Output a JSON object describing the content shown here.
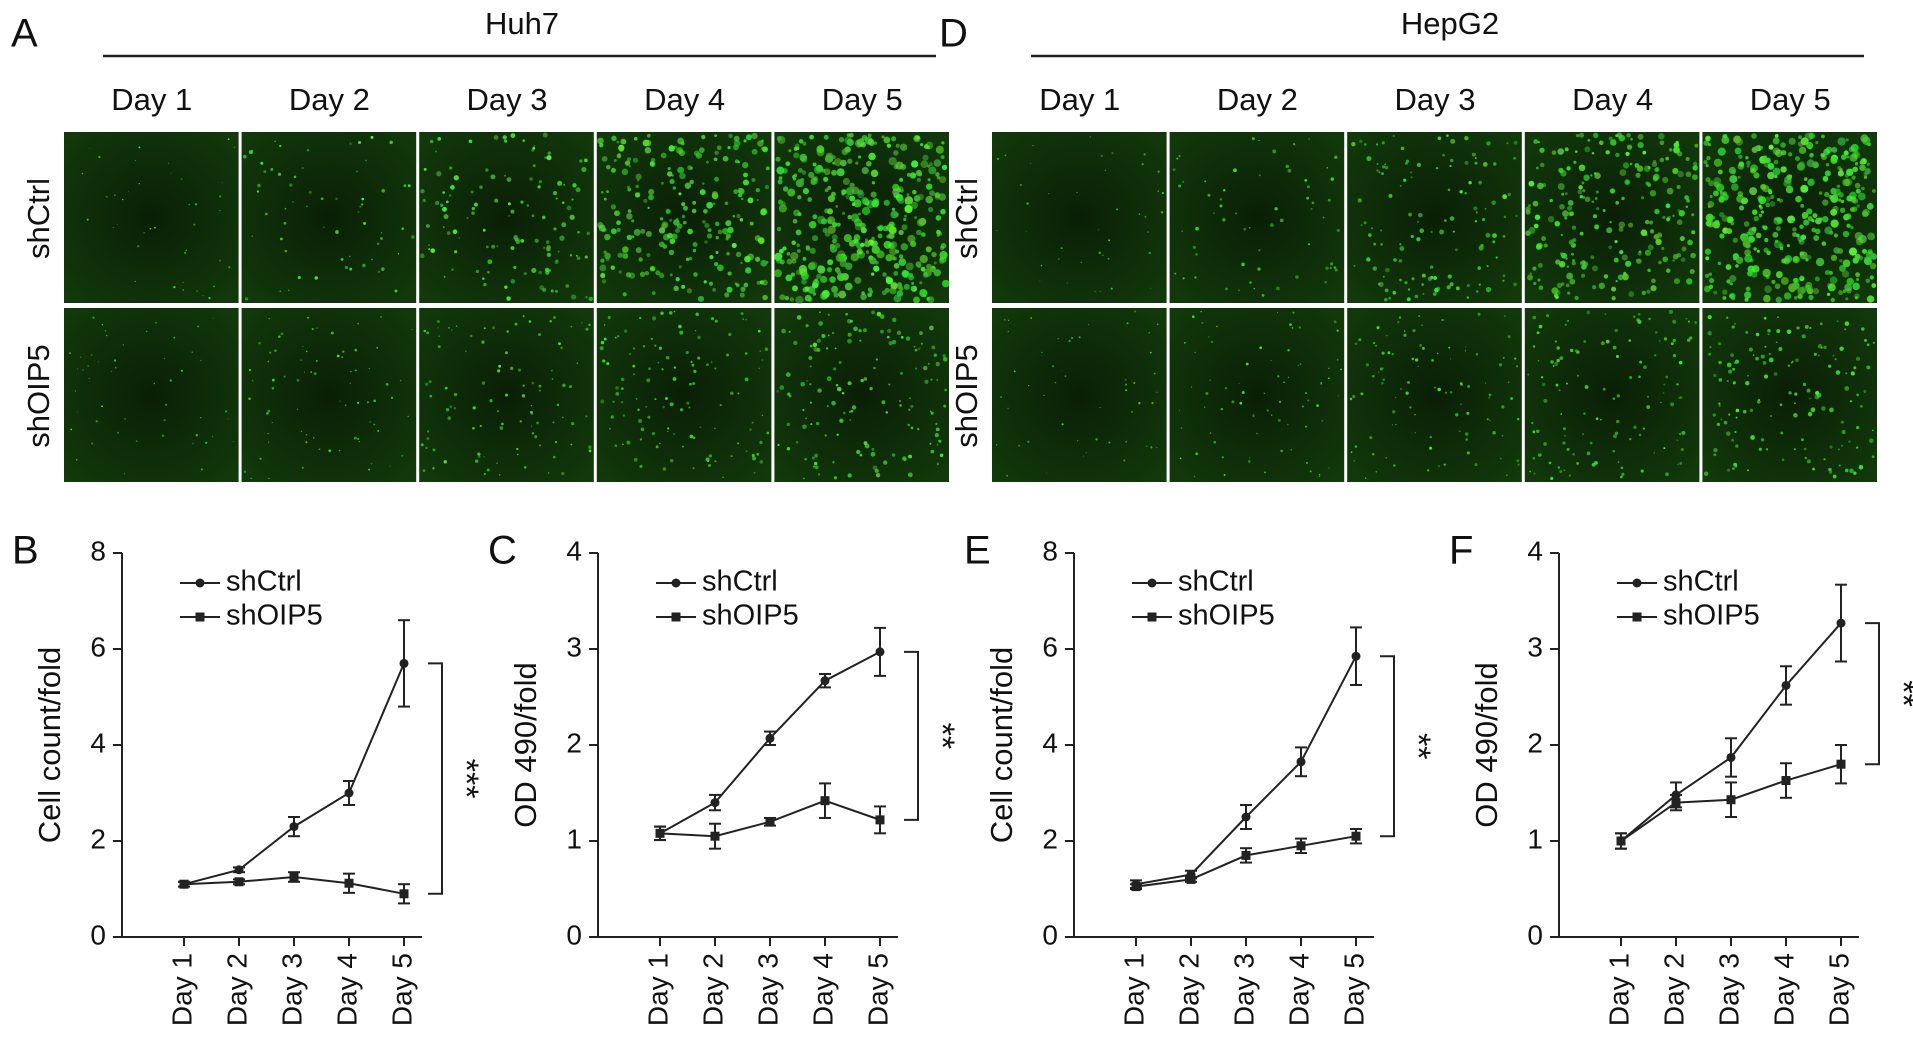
{
  "image_panels": [
    {
      "panel": "A",
      "title": "Huh7",
      "columns": [
        "Day 1",
        "Day 2",
        "Day 3",
        "Day 4",
        "Day 5"
      ],
      "rows": [
        "shCtrl",
        "shOIP5"
      ]
    },
    {
      "panel": "D",
      "title": "HepG2",
      "columns": [
        "Day 1",
        "Day 2",
        "Day 3",
        "Day 4",
        "Day 5"
      ],
      "rows": [
        "shCtrl",
        "shOIP5"
      ]
    }
  ],
  "chart_data": [
    {
      "type": "line",
      "panel": "B",
      "y_label": "Cell count/fold",
      "categories": [
        "Day 1",
        "Day 2",
        "Day 3",
        "Day 4",
        "Day 5"
      ],
      "ylim": [
        0,
        8
      ],
      "yticks": [
        0,
        2,
        4,
        6,
        8
      ],
      "significance": "***",
      "series": [
        {
          "name": "shCtrl",
          "color": "#222222",
          "marker": "circle",
          "values": [
            1.1,
            1.4,
            2.3,
            3.0,
            5.7
          ],
          "errors": [
            0.05,
            0.05,
            0.2,
            0.25,
            0.9
          ]
        },
        {
          "name": "shOIP5",
          "color": "#222222",
          "marker": "square",
          "values": [
            1.1,
            1.15,
            1.25,
            1.12,
            0.9
          ],
          "errors": [
            0.05,
            0.05,
            0.1,
            0.2,
            0.2
          ]
        }
      ]
    },
    {
      "type": "line",
      "panel": "C",
      "y_label": "OD 490/fold",
      "categories": [
        "Day 1",
        "Day 2",
        "Day 3",
        "Day 4",
        "Day 5"
      ],
      "ylim": [
        0,
        4
      ],
      "yticks": [
        0,
        1,
        2,
        3,
        4
      ],
      "significance": "**",
      "series": [
        {
          "name": "shCtrl",
          "color": "#222222",
          "marker": "circle",
          "values": [
            1.08,
            1.4,
            2.07,
            2.67,
            2.97
          ],
          "errors": [
            0.07,
            0.08,
            0.07,
            0.07,
            0.25
          ]
        },
        {
          "name": "shOIP5",
          "color": "#222222",
          "marker": "square",
          "values": [
            1.08,
            1.05,
            1.2,
            1.42,
            1.22
          ],
          "errors": [
            0.07,
            0.13,
            0.04,
            0.18,
            0.14
          ]
        }
      ]
    },
    {
      "type": "line",
      "panel": "E",
      "y_label": "Cell count/fold",
      "categories": [
        "Day 1",
        "Day 2",
        "Day 3",
        "Day 4",
        "Day 5"
      ],
      "ylim": [
        0,
        8
      ],
      "yticks": [
        0,
        2,
        4,
        6,
        8
      ],
      "significance": "**",
      "series": [
        {
          "name": "shCtrl",
          "color": "#222222",
          "marker": "circle",
          "values": [
            1.1,
            1.3,
            2.5,
            3.65,
            5.85
          ],
          "errors": [
            0.08,
            0.08,
            0.25,
            0.3,
            0.6
          ]
        },
        {
          "name": "shOIP5",
          "color": "#222222",
          "marker": "square",
          "values": [
            1.05,
            1.2,
            1.7,
            1.9,
            2.1
          ],
          "errors": [
            0.05,
            0.05,
            0.15,
            0.15,
            0.15
          ]
        }
      ]
    },
    {
      "type": "line",
      "panel": "F",
      "y_label": "OD 490/fold",
      "categories": [
        "Day 1",
        "Day 2",
        "Day 3",
        "Day 4",
        "Day 5"
      ],
      "ylim": [
        0,
        4
      ],
      "yticks": [
        0,
        1,
        2,
        3,
        4
      ],
      "significance": "**",
      "series": [
        {
          "name": "shCtrl",
          "color": "#222222",
          "marker": "circle",
          "values": [
            1.0,
            1.48,
            1.87,
            2.62,
            3.27
          ],
          "errors": [
            0.08,
            0.13,
            0.2,
            0.2,
            0.4
          ]
        },
        {
          "name": "shOIP5",
          "color": "#222222",
          "marker": "square",
          "values": [
            1.0,
            1.4,
            1.43,
            1.63,
            1.8
          ],
          "errors": [
            0.08,
            0.08,
            0.18,
            0.18,
            0.2
          ]
        }
      ]
    }
  ]
}
